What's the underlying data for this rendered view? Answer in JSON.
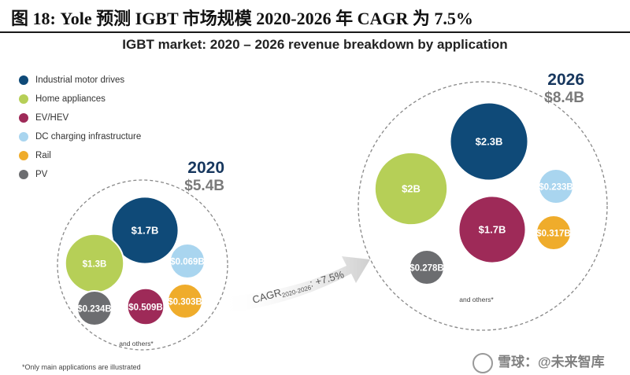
{
  "figure": {
    "title": "图 18:  Yole 预测 IGBT 市场规模 2020-2026 年 CAGR 为 7.5%"
  },
  "chart_data": {
    "type": "bubble",
    "title": "IGBT market: 2020 – 2026 revenue breakdown by application",
    "units": "USD billions",
    "legend": [
      {
        "name": "Industrial motor drives",
        "color": "#0f4a78"
      },
      {
        "name": "Home appliances",
        "color": "#b6cf57"
      },
      {
        "name": "EV/HEV",
        "color": "#9e2a58"
      },
      {
        "name": "DC charging infrastructure",
        "color": "#a9d5ef"
      },
      {
        "name": "Rail",
        "color": "#efac2b"
      },
      {
        "name": "PV",
        "color": "#6c6d70"
      }
    ],
    "groups": [
      {
        "year": "2020",
        "total": 5.4,
        "total_label": "$5.4B",
        "others_label": "and others*",
        "bubbles": [
          {
            "category": "Industrial motor drives",
            "value": 1.7,
            "label": "$1.7B"
          },
          {
            "category": "Home appliances",
            "value": 1.3,
            "label": "$1.3B"
          },
          {
            "category": "EV/HEV",
            "value": 0.509,
            "label": "$0.509B"
          },
          {
            "category": "DC charging infrastructure",
            "value": 0.069,
            "label": "$0.069B"
          },
          {
            "category": "Rail",
            "value": 0.303,
            "label": "$0.303B"
          },
          {
            "category": "PV",
            "value": 0.234,
            "label": "$0.234B"
          }
        ]
      },
      {
        "year": "2026",
        "total": 8.4,
        "total_label": "$8.4B",
        "others_label": "and others*",
        "bubbles": [
          {
            "category": "Industrial motor drives",
            "value": 2.3,
            "label": "$2.3B"
          },
          {
            "category": "Home appliances",
            "value": 2.0,
            "label": "$2B"
          },
          {
            "category": "EV/HEV",
            "value": 1.7,
            "label": "$1.7B"
          },
          {
            "category": "DC charging infrastructure",
            "value": 0.233,
            "label": "$0.233B"
          },
          {
            "category": "Rail",
            "value": 0.317,
            "label": "$0.317B"
          },
          {
            "category": "PV",
            "value": 0.278,
            "label": "$0.278B"
          }
        ]
      }
    ],
    "cagr": {
      "prefix": "CAGR",
      "subscript": "2020-2026",
      "value": ": +7.5%"
    },
    "footnote": "*Only main applications are illustrated"
  },
  "watermark": {
    "text": "雪球：@未来智库"
  }
}
